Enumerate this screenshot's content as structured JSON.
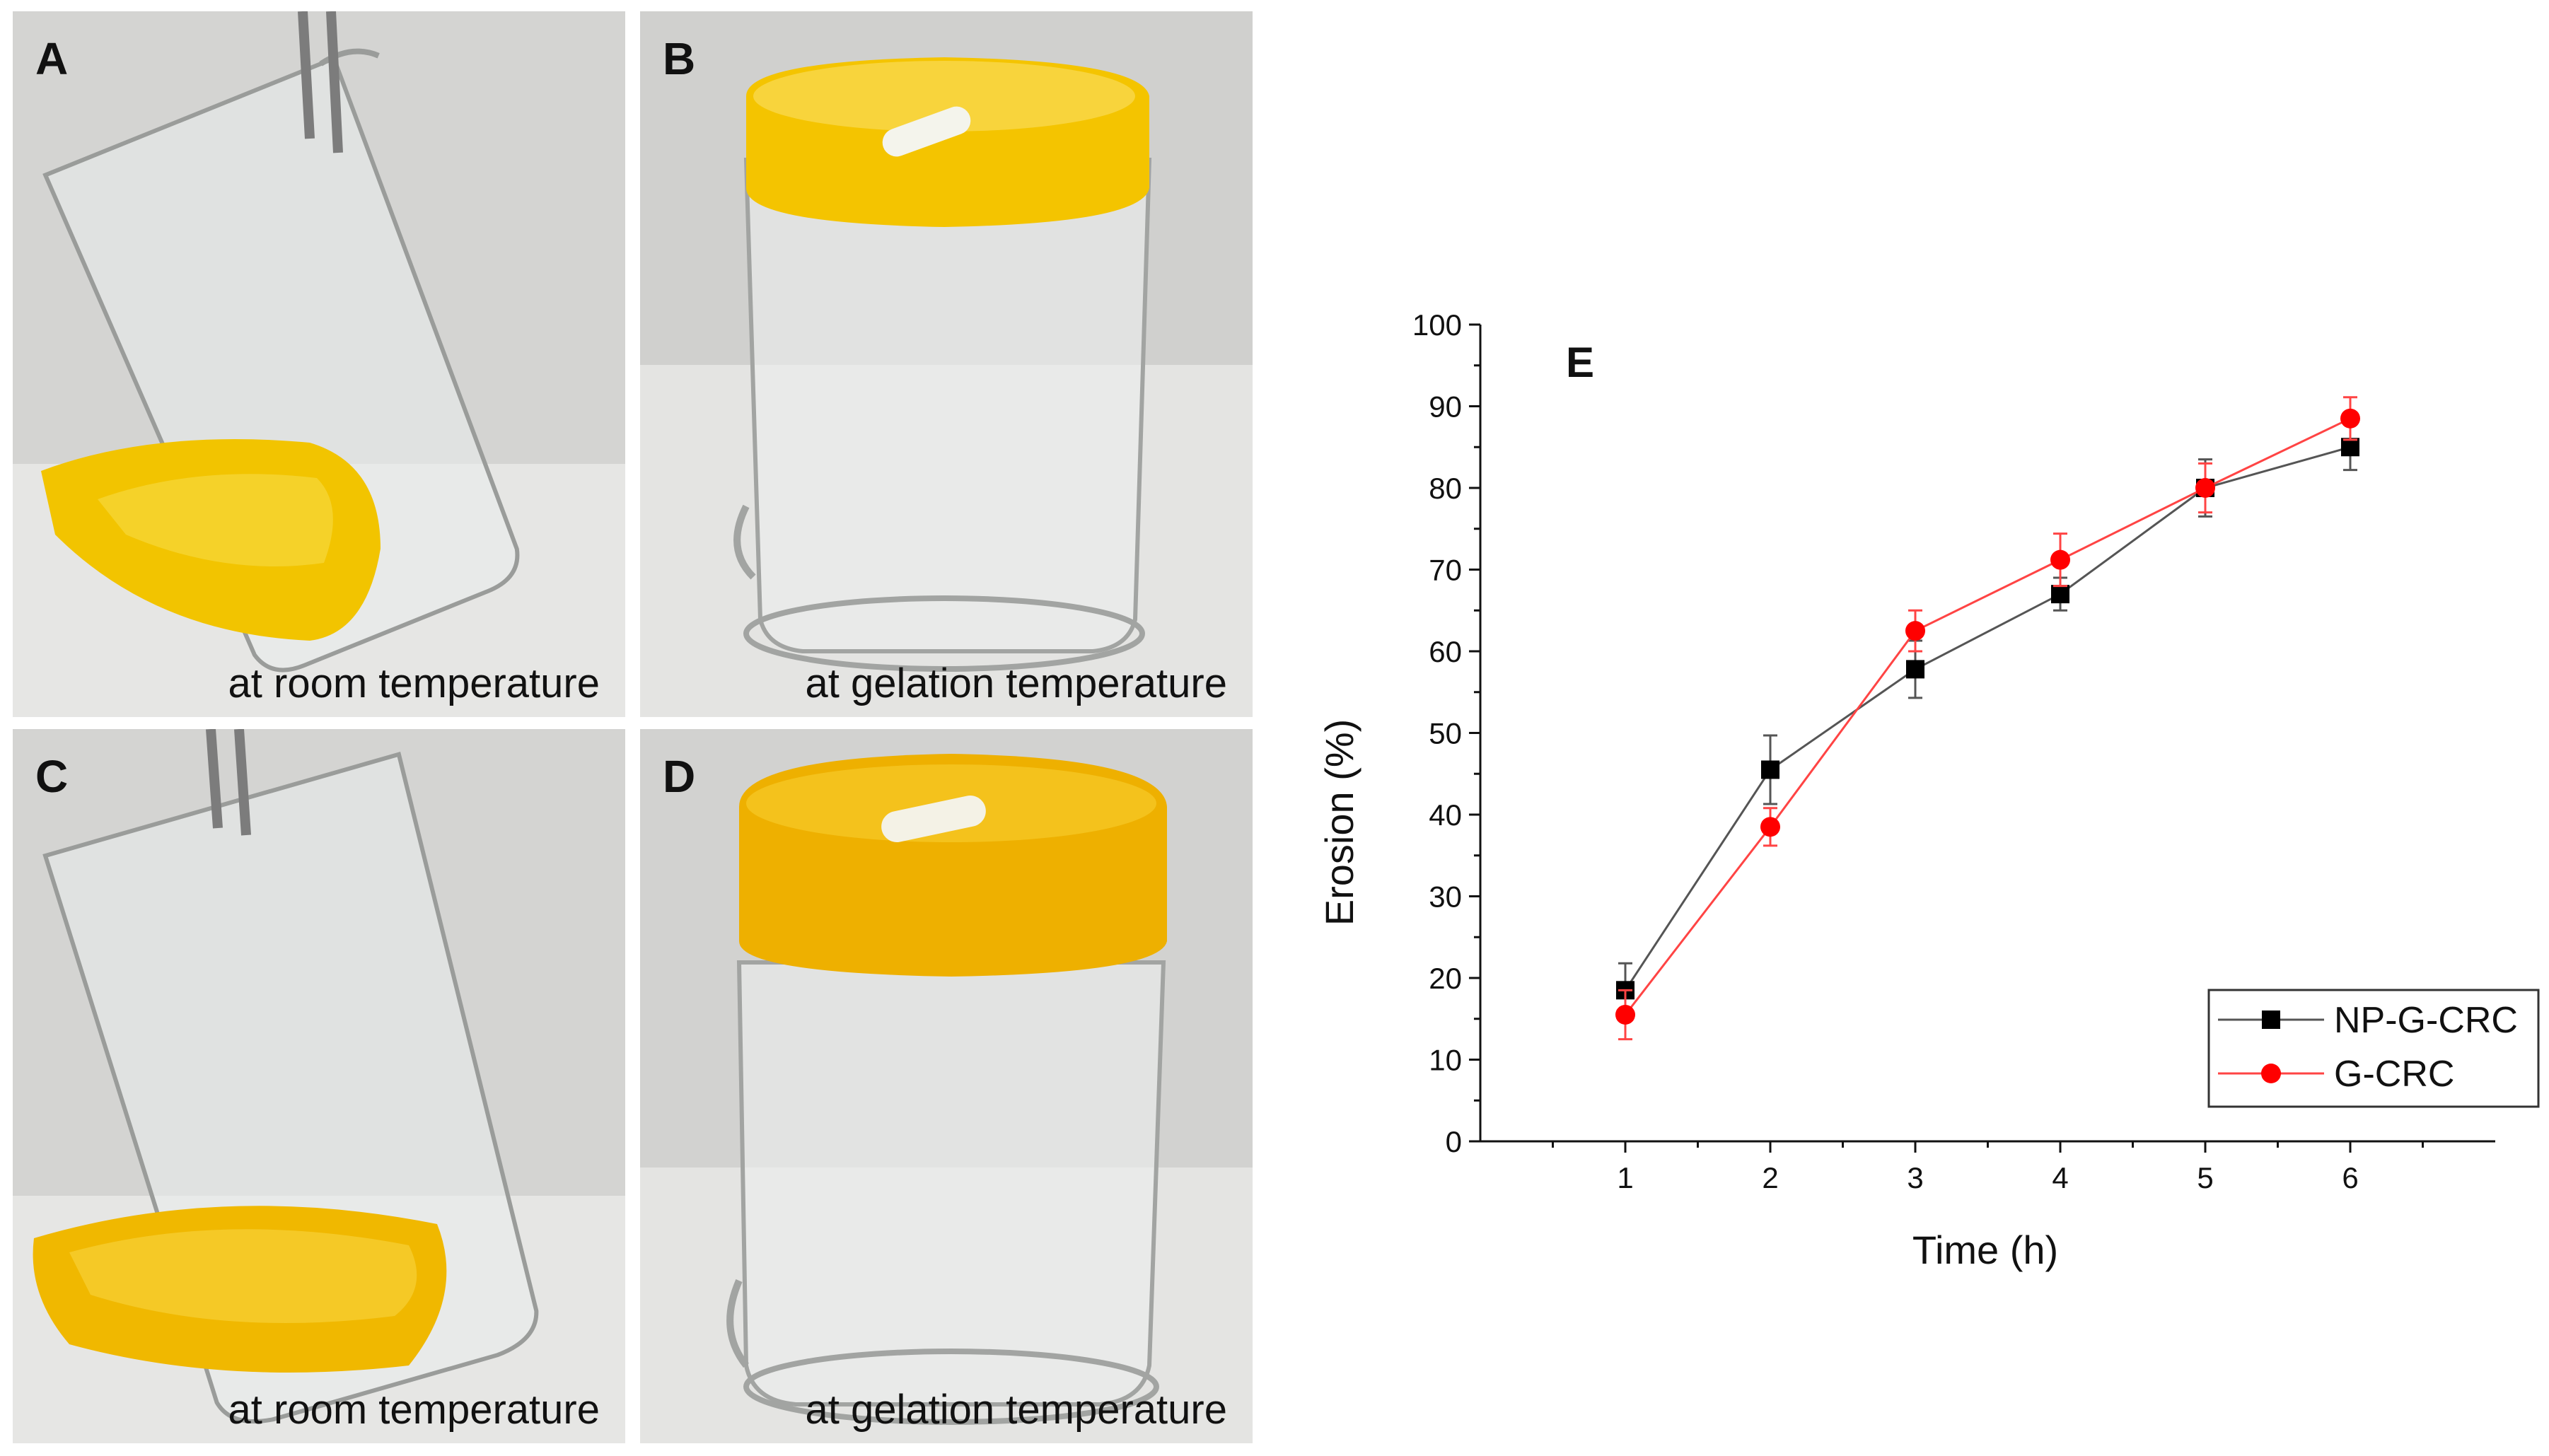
{
  "panels": [
    {
      "letter": "A",
      "caption": "at room temperature"
    },
    {
      "letter": "B",
      "caption": "at gelation temperature"
    },
    {
      "letter": "C",
      "caption": "at room temperature"
    },
    {
      "letter": "D",
      "caption": "at gelation temperature"
    }
  ],
  "chart_data": {
    "type": "line",
    "panel_label": "E",
    "xlabel": "Time (h)",
    "ylabel": "Erosion (%)",
    "x": [
      1,
      2,
      3,
      4,
      5,
      6
    ],
    "xlim": [
      0,
      7
    ],
    "ylim": [
      0,
      100
    ],
    "yticks": [
      0,
      10,
      20,
      30,
      40,
      50,
      60,
      70,
      80,
      90,
      100
    ],
    "legend_position": "bottom-right",
    "series": [
      {
        "name": "NP-G-CRC",
        "marker": "square",
        "color": "#000000",
        "line_color": "#555555",
        "values": [
          18.5,
          45.5,
          57.8,
          67.0,
          80.0,
          85.0
        ],
        "errors": [
          3.3,
          4.2,
          3.5,
          2.0,
          3.5,
          2.8
        ]
      },
      {
        "name": "G-CRC",
        "marker": "circle",
        "color": "#ff0000",
        "line_color": "#ff4444",
        "values": [
          15.5,
          38.5,
          62.5,
          71.2,
          80.0,
          88.5
        ],
        "errors": [
          3.0,
          2.3,
          2.5,
          3.2,
          3.0,
          2.6
        ]
      }
    ]
  }
}
